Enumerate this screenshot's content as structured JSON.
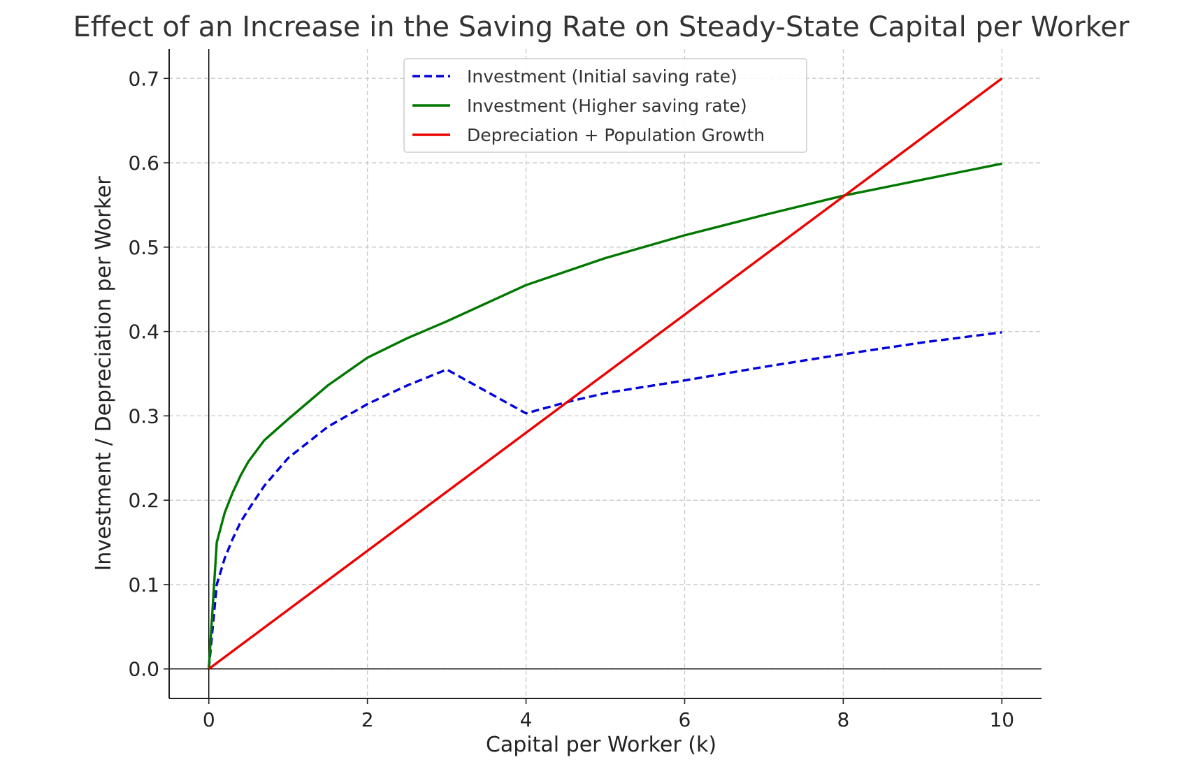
{
  "chart_data": {
    "type": "line",
    "title": "Effect of an Increase in the Saving Rate on Steady-State Capital per Worker",
    "xlabel": "Capital per Worker (k)",
    "ylabel": "Investment / Depreciation per Worker",
    "xlim": [
      -0.5,
      10.5
    ],
    "ylim": [
      -0.035,
      0.735
    ],
    "xticks": [
      0,
      2,
      4,
      6,
      8,
      10
    ],
    "yticks": [
      0.0,
      0.1,
      0.2,
      0.3,
      0.4,
      0.5,
      0.6,
      0.7
    ],
    "xtick_labels": [
      "0",
      "2",
      "4",
      "6",
      "8",
      "10"
    ],
    "ytick_labels": [
      "0.0",
      "0.1",
      "0.2",
      "0.3",
      "0.4",
      "0.5",
      "0.6",
      "0.7"
    ],
    "grid": true,
    "legend_position": "top-center",
    "series": [
      {
        "name": "Investment (Initial saving rate)",
        "color": "#0000dd",
        "style": "dashed",
        "x": [
          0,
          0.1,
          0.2,
          0.3,
          0.4,
          0.5,
          0.7,
          1,
          1.5,
          2,
          2.5,
          3,
          4,
          4.5,
          5,
          6,
          7,
          8,
          9,
          10
        ],
        "y": [
          0,
          0.1,
          0.131,
          0.154,
          0.174,
          0.189,
          0.217,
          0.25,
          0.287,
          0.314,
          0.336,
          0.355,
          0.303,
          0.316,
          0.327,
          0.342,
          0.358,
          0.373,
          0.387,
          0.399
        ]
      },
      {
        "name": "Investment (Higher saving rate)",
        "color": "#007700",
        "style": "solid",
        "x": [
          0,
          0.1,
          0.2,
          0.3,
          0.4,
          0.5,
          0.7,
          1,
          1.5,
          2,
          2.5,
          3,
          4,
          5,
          6,
          7,
          8,
          9,
          10
        ],
        "y": [
          0,
          0.15,
          0.185,
          0.209,
          0.229,
          0.246,
          0.271,
          0.296,
          0.336,
          0.369,
          0.392,
          0.412,
          0.455,
          0.487,
          0.514,
          0.538,
          0.561,
          0.58,
          0.599
        ]
      },
      {
        "name": "Depreciation + Population Growth",
        "color": "#ee0000",
        "style": "solid",
        "x": [
          0,
          10
        ],
        "y": [
          0,
          0.7
        ]
      }
    ]
  }
}
